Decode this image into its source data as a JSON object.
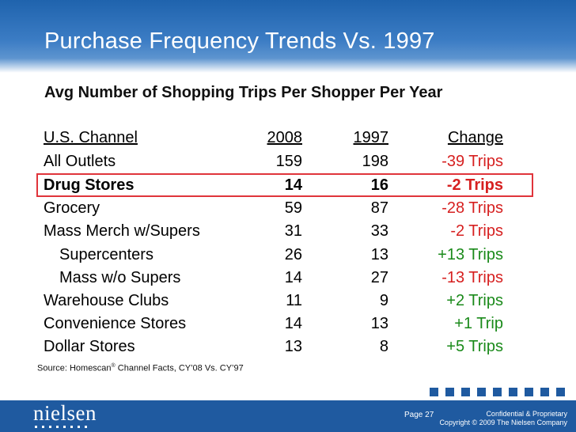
{
  "slide": {
    "title": "Purchase Frequency Trends Vs. 1997",
    "subtitle": "Avg Number of Shopping Trips Per Shopper Per Year"
  },
  "table": {
    "headers": {
      "channel": "U.S. Channel",
      "y2008": "2008",
      "y1997": "1997",
      "change": "Change"
    },
    "rows": [
      {
        "channel": "All Outlets",
        "y2008": "159",
        "y1997": "198",
        "change": "-39 Trips"
      },
      {
        "channel": "Drug Stores",
        "y2008": "14",
        "y1997": "16",
        "change": "-2 Trips"
      },
      {
        "channel": "Grocery",
        "y2008": "59",
        "y1997": "87",
        "change": "-28 Trips"
      },
      {
        "channel": "Mass Merch w/Supers",
        "y2008": "31",
        "y1997": "33",
        "change": "-2 Trips"
      },
      {
        "channel": "Supercenters",
        "y2008": "26",
        "y1997": "13",
        "change": "+13 Trips"
      },
      {
        "channel": "Mass w/o Supers",
        "y2008": "14",
        "y1997": "27",
        "change": "-13 Trips"
      },
      {
        "channel": "Warehouse Clubs",
        "y2008": "11",
        "y1997": "9",
        "change": "+2 Trips"
      },
      {
        "channel": "Convenience Stores",
        "y2008": "14",
        "y1997": "13",
        "change": "+1 Trip"
      },
      {
        "channel": "Dollar Stores",
        "y2008": "13",
        "y1997": "8",
        "change": "+5 Trips"
      }
    ]
  },
  "source": {
    "prefix": "Source:  Homescan",
    "reg": "®",
    "suffix": " Channel Facts, CY’08 Vs. CY’97"
  },
  "footer": {
    "logo": "nielsen",
    "page": "Page 27",
    "confidential": "Confidential & Proprietary",
    "copyright": "Copyright © 2009 The Nielsen Company"
  },
  "colors": {
    "brand_blue": "#1f5aa0",
    "negative": "#d62020",
    "positive": "#1a8a1a",
    "highlight": "#e0343b"
  }
}
